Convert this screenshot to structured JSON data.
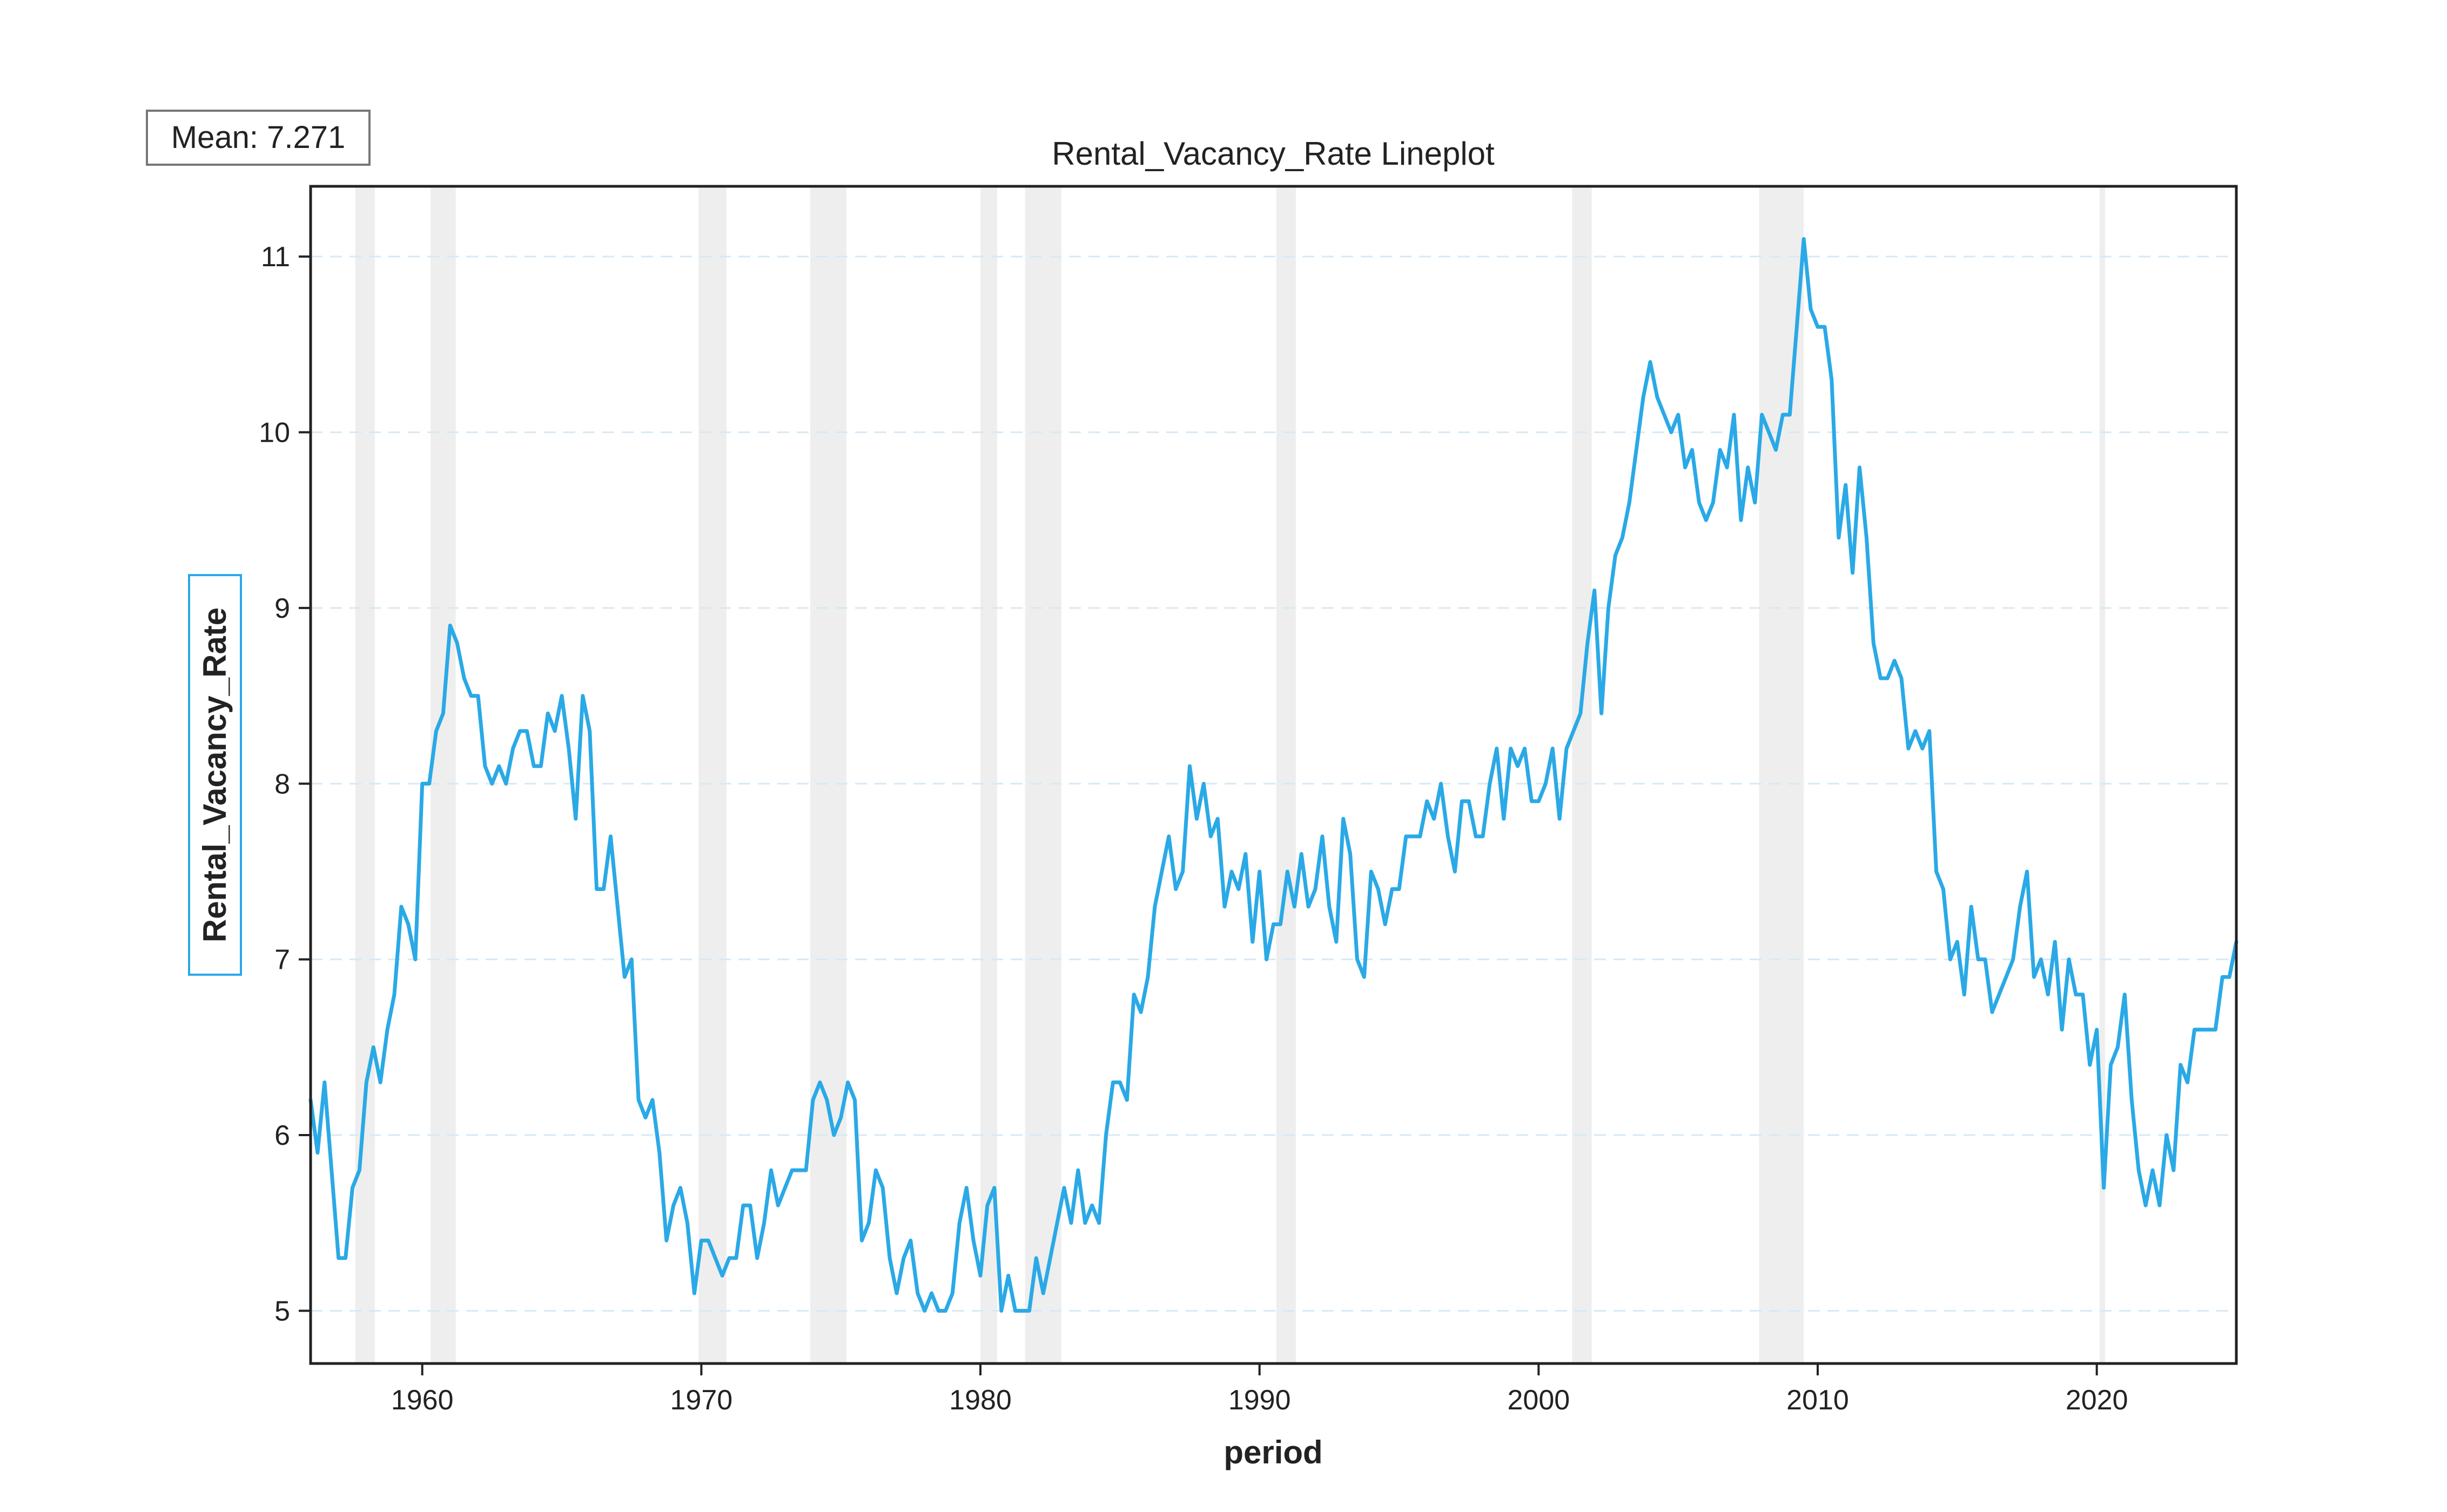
{
  "chart_data": {
    "type": "line",
    "title": "Rental_Vacancy_Rate Lineplot",
    "xlabel": "period",
    "ylabel": "Rental_Vacancy_Rate",
    "annotation": "Mean: 7.271",
    "xlim": [
      1956.0,
      2025.0
    ],
    "ylim": [
      4.7,
      11.4
    ],
    "xticks": [
      1960,
      1970,
      1980,
      1990,
      2000,
      2010,
      2020
    ],
    "yticks": [
      5,
      6,
      7,
      8,
      9,
      10,
      11
    ],
    "grid": "y dashed",
    "line_color": "#2aa9e6",
    "band_color": "#e8e8e8",
    "recession_bands": [
      [
        1957.6,
        1958.3
      ],
      [
        1960.3,
        1961.2
      ],
      [
        1969.9,
        1970.9
      ],
      [
        1973.9,
        1975.2
      ],
      [
        1980.0,
        1980.6
      ],
      [
        1981.6,
        1982.9
      ],
      [
        1990.6,
        1991.3
      ],
      [
        2001.2,
        2001.9
      ],
      [
        2007.9,
        2009.5
      ],
      [
        2020.1,
        2020.3
      ]
    ],
    "series": [
      {
        "values": [
          [
            1956.0,
            6.2
          ],
          [
            1956.25,
            5.9
          ],
          [
            1956.5,
            6.3
          ],
          [
            1956.75,
            5.8
          ],
          [
            1957.0,
            5.3
          ],
          [
            1957.25,
            5.3
          ],
          [
            1957.5,
            5.7
          ],
          [
            1957.75,
            5.8
          ],
          [
            1958.0,
            6.3
          ],
          [
            1958.25,
            6.5
          ],
          [
            1958.5,
            6.3
          ],
          [
            1958.75,
            6.6
          ],
          [
            1959.0,
            6.8
          ],
          [
            1959.25,
            7.3
          ],
          [
            1959.5,
            7.2
          ],
          [
            1959.75,
            7.0
          ],
          [
            1960.0,
            8.0
          ],
          [
            1960.25,
            8.0
          ],
          [
            1960.5,
            8.3
          ],
          [
            1960.75,
            8.4
          ],
          [
            1961.0,
            8.9
          ],
          [
            1961.25,
            8.8
          ],
          [
            1961.5,
            8.6
          ],
          [
            1961.75,
            8.5
          ],
          [
            1962.0,
            8.5
          ],
          [
            1962.25,
            8.1
          ],
          [
            1962.5,
            8.0
          ],
          [
            1962.75,
            8.1
          ],
          [
            1963.0,
            8.0
          ],
          [
            1963.25,
            8.2
          ],
          [
            1963.5,
            8.3
          ],
          [
            1963.75,
            8.3
          ],
          [
            1964.0,
            8.1
          ],
          [
            1964.25,
            8.1
          ],
          [
            1964.5,
            8.4
          ],
          [
            1964.75,
            8.3
          ],
          [
            1965.0,
            8.5
          ],
          [
            1965.25,
            8.2
          ],
          [
            1965.5,
            7.8
          ],
          [
            1965.75,
            8.5
          ],
          [
            1966.0,
            8.3
          ],
          [
            1966.25,
            7.4
          ],
          [
            1966.5,
            7.4
          ],
          [
            1966.75,
            7.7
          ],
          [
            1967.0,
            7.3
          ],
          [
            1967.25,
            6.9
          ],
          [
            1967.5,
            7.0
          ],
          [
            1967.75,
            6.2
          ],
          [
            1968.0,
            6.1
          ],
          [
            1968.25,
            6.2
          ],
          [
            1968.5,
            5.9
          ],
          [
            1968.75,
            5.4
          ],
          [
            1969.0,
            5.6
          ],
          [
            1969.25,
            5.7
          ],
          [
            1969.5,
            5.5
          ],
          [
            1969.75,
            5.1
          ],
          [
            1970.0,
            5.4
          ],
          [
            1970.25,
            5.4
          ],
          [
            1970.5,
            5.3
          ],
          [
            1970.75,
            5.2
          ],
          [
            1971.0,
            5.3
          ],
          [
            1971.25,
            5.3
          ],
          [
            1971.5,
            5.6
          ],
          [
            1971.75,
            5.6
          ],
          [
            1972.0,
            5.3
          ],
          [
            1972.25,
            5.5
          ],
          [
            1972.5,
            5.8
          ],
          [
            1972.75,
            5.6
          ],
          [
            1973.0,
            5.7
          ],
          [
            1973.25,
            5.8
          ],
          [
            1973.5,
            5.8
          ],
          [
            1973.75,
            5.8
          ],
          [
            1974.0,
            6.2
          ],
          [
            1974.25,
            6.3
          ],
          [
            1974.5,
            6.2
          ],
          [
            1974.75,
            6.0
          ],
          [
            1975.0,
            6.1
          ],
          [
            1975.25,
            6.3
          ],
          [
            1975.5,
            6.2
          ],
          [
            1975.75,
            5.4
          ],
          [
            1976.0,
            5.5
          ],
          [
            1976.25,
            5.8
          ],
          [
            1976.5,
            5.7
          ],
          [
            1976.75,
            5.3
          ],
          [
            1977.0,
            5.1
          ],
          [
            1977.25,
            5.3
          ],
          [
            1977.5,
            5.4
          ],
          [
            1977.75,
            5.1
          ],
          [
            1978.0,
            5.0
          ],
          [
            1978.25,
            5.1
          ],
          [
            1978.5,
            5.0
          ],
          [
            1978.75,
            5.0
          ],
          [
            1979.0,
            5.1
          ],
          [
            1979.25,
            5.5
          ],
          [
            1979.5,
            5.7
          ],
          [
            1979.75,
            5.4
          ],
          [
            1980.0,
            5.2
          ],
          [
            1980.25,
            5.6
          ],
          [
            1980.5,
            5.7
          ],
          [
            1980.75,
            5.0
          ],
          [
            1981.0,
            5.2
          ],
          [
            1981.25,
            5.0
          ],
          [
            1981.5,
            5.0
          ],
          [
            1981.75,
            5.0
          ],
          [
            1982.0,
            5.3
          ],
          [
            1982.25,
            5.1
          ],
          [
            1982.5,
            5.3
          ],
          [
            1982.75,
            5.5
          ],
          [
            1983.0,
            5.7
          ],
          [
            1983.25,
            5.5
          ],
          [
            1983.5,
            5.8
          ],
          [
            1983.75,
            5.5
          ],
          [
            1984.0,
            5.6
          ],
          [
            1984.25,
            5.5
          ],
          [
            1984.5,
            6.0
          ],
          [
            1984.75,
            6.3
          ],
          [
            1985.0,
            6.3
          ],
          [
            1985.25,
            6.2
          ],
          [
            1985.5,
            6.8
          ],
          [
            1985.75,
            6.7
          ],
          [
            1986.0,
            6.9
          ],
          [
            1986.25,
            7.3
          ],
          [
            1986.5,
            7.5
          ],
          [
            1986.75,
            7.7
          ],
          [
            1987.0,
            7.4
          ],
          [
            1987.25,
            7.5
          ],
          [
            1987.5,
            8.1
          ],
          [
            1987.75,
            7.8
          ],
          [
            1988.0,
            8.0
          ],
          [
            1988.25,
            7.7
          ],
          [
            1988.5,
            7.8
          ],
          [
            1988.75,
            7.3
          ],
          [
            1989.0,
            7.5
          ],
          [
            1989.25,
            7.4
          ],
          [
            1989.5,
            7.6
          ],
          [
            1989.75,
            7.1
          ],
          [
            1990.0,
            7.5
          ],
          [
            1990.25,
            7.0
          ],
          [
            1990.5,
            7.2
          ],
          [
            1990.75,
            7.2
          ],
          [
            1991.0,
            7.5
          ],
          [
            1991.25,
            7.3
          ],
          [
            1991.5,
            7.6
          ],
          [
            1991.75,
            7.3
          ],
          [
            1992.0,
            7.4
          ],
          [
            1992.25,
            7.7
          ],
          [
            1992.5,
            7.3
          ],
          [
            1992.75,
            7.1
          ],
          [
            1993.0,
            7.8
          ],
          [
            1993.25,
            7.6
          ],
          [
            1993.5,
            7.0
          ],
          [
            1993.75,
            6.9
          ],
          [
            1994.0,
            7.5
          ],
          [
            1994.25,
            7.4
          ],
          [
            1994.5,
            7.2
          ],
          [
            1994.75,
            7.4
          ],
          [
            1995.0,
            7.4
          ],
          [
            1995.25,
            7.7
          ],
          [
            1995.5,
            7.7
          ],
          [
            1995.75,
            7.7
          ],
          [
            1996.0,
            7.9
          ],
          [
            1996.25,
            7.8
          ],
          [
            1996.5,
            8.0
          ],
          [
            1996.75,
            7.7
          ],
          [
            1997.0,
            7.5
          ],
          [
            1997.25,
            7.9
          ],
          [
            1997.5,
            7.9
          ],
          [
            1997.75,
            7.7
          ],
          [
            1998.0,
            7.7
          ],
          [
            1998.25,
            8.0
          ],
          [
            1998.5,
            8.2
          ],
          [
            1998.75,
            7.8
          ],
          [
            1999.0,
            8.2
          ],
          [
            1999.25,
            8.1
          ],
          [
            1999.5,
            8.2
          ],
          [
            1999.75,
            7.9
          ],
          [
            2000.0,
            7.9
          ],
          [
            2000.25,
            8.0
          ],
          [
            2000.5,
            8.2
          ],
          [
            2000.75,
            7.8
          ],
          [
            2001.0,
            8.2
          ],
          [
            2001.25,
            8.3
          ],
          [
            2001.5,
            8.4
          ],
          [
            2001.75,
            8.8
          ],
          [
            2002.0,
            9.1
          ],
          [
            2002.25,
            8.4
          ],
          [
            2002.5,
            9.0
          ],
          [
            2002.75,
            9.3
          ],
          [
            2003.0,
            9.4
          ],
          [
            2003.25,
            9.6
          ],
          [
            2003.5,
            9.9
          ],
          [
            2003.75,
            10.2
          ],
          [
            2004.0,
            10.4
          ],
          [
            2004.25,
            10.2
          ],
          [
            2004.5,
            10.1
          ],
          [
            2004.75,
            10.0
          ],
          [
            2005.0,
            10.1
          ],
          [
            2005.25,
            9.8
          ],
          [
            2005.5,
            9.9
          ],
          [
            2005.75,
            9.6
          ],
          [
            2006.0,
            9.5
          ],
          [
            2006.25,
            9.6
          ],
          [
            2006.5,
            9.9
          ],
          [
            2006.75,
            9.8
          ],
          [
            2007.0,
            10.1
          ],
          [
            2007.25,
            9.5
          ],
          [
            2007.5,
            9.8
          ],
          [
            2007.75,
            9.6
          ],
          [
            2008.0,
            10.1
          ],
          [
            2008.25,
            10.0
          ],
          [
            2008.5,
            9.9
          ],
          [
            2008.75,
            10.1
          ],
          [
            2009.0,
            10.1
          ],
          [
            2009.25,
            10.6
          ],
          [
            2009.5,
            11.1
          ],
          [
            2009.75,
            10.7
          ],
          [
            2010.0,
            10.6
          ],
          [
            2010.25,
            10.6
          ],
          [
            2010.5,
            10.3
          ],
          [
            2010.75,
            9.4
          ],
          [
            2011.0,
            9.7
          ],
          [
            2011.25,
            9.2
          ],
          [
            2011.5,
            9.8
          ],
          [
            2011.75,
            9.4
          ],
          [
            2012.0,
            8.8
          ],
          [
            2012.25,
            8.6
          ],
          [
            2012.5,
            8.6
          ],
          [
            2012.75,
            8.7
          ],
          [
            2013.0,
            8.6
          ],
          [
            2013.25,
            8.2
          ],
          [
            2013.5,
            8.3
          ],
          [
            2013.75,
            8.2
          ],
          [
            2014.0,
            8.3
          ],
          [
            2014.25,
            7.5
          ],
          [
            2014.5,
            7.4
          ],
          [
            2014.75,
            7.0
          ],
          [
            2015.0,
            7.1
          ],
          [
            2015.25,
            6.8
          ],
          [
            2015.5,
            7.3
          ],
          [
            2015.75,
            7.0
          ],
          [
            2016.0,
            7.0
          ],
          [
            2016.25,
            6.7
          ],
          [
            2016.5,
            6.8
          ],
          [
            2016.75,
            6.9
          ],
          [
            2017.0,
            7.0
          ],
          [
            2017.25,
            7.3
          ],
          [
            2017.5,
            7.5
          ],
          [
            2017.75,
            6.9
          ],
          [
            2018.0,
            7.0
          ],
          [
            2018.25,
            6.8
          ],
          [
            2018.5,
            7.1
          ],
          [
            2018.75,
            6.6
          ],
          [
            2019.0,
            7.0
          ],
          [
            2019.25,
            6.8
          ],
          [
            2019.5,
            6.8
          ],
          [
            2019.75,
            6.4
          ],
          [
            2020.0,
            6.6
          ],
          [
            2020.25,
            5.7
          ],
          [
            2020.5,
            6.4
          ],
          [
            2020.75,
            6.5
          ],
          [
            2021.0,
            6.8
          ],
          [
            2021.25,
            6.2
          ],
          [
            2021.5,
            5.8
          ],
          [
            2021.75,
            5.6
          ],
          [
            2022.0,
            5.8
          ],
          [
            2022.25,
            5.6
          ],
          [
            2022.5,
            6.0
          ],
          [
            2022.75,
            5.8
          ],
          [
            2023.0,
            6.4
          ],
          [
            2023.25,
            6.3
          ],
          [
            2023.5,
            6.6
          ],
          [
            2023.75,
            6.6
          ],
          [
            2024.0,
            6.6
          ],
          [
            2024.25,
            6.6
          ],
          [
            2024.5,
            6.9
          ],
          [
            2024.75,
            6.9
          ],
          [
            2025.0,
            7.1
          ]
        ]
      }
    ]
  }
}
